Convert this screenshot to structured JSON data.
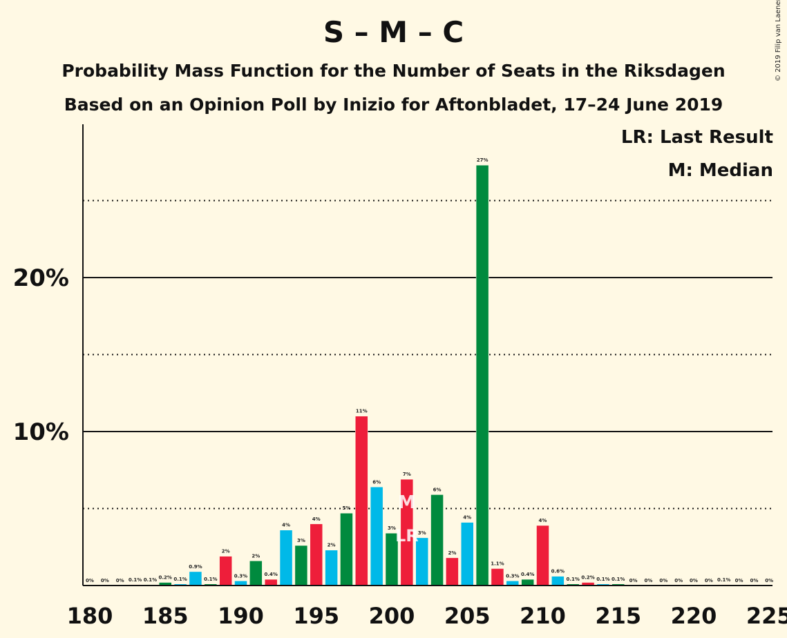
{
  "title": "S – M – C",
  "subtitle1": "Probability Mass Function for the Number of Seats in the Riksdagen",
  "subtitle2": "Based on an Opinion Poll by Inizio for Aftonbladet, 17–24 June 2019",
  "copyright": "© 2019 Filip van Laenen",
  "legend": {
    "last_result": "LR: Last Result",
    "median": "M: Median"
  },
  "colors": {
    "red": "#ee1e3a",
    "green": "#008a3e",
    "blue": "#00b9e8",
    "background": "#fff9e4"
  },
  "chart_data": {
    "type": "bar",
    "xlim": [
      180,
      225
    ],
    "ylim": [
      0,
      30
    ],
    "x_ticks": [
      180,
      185,
      190,
      195,
      200,
      205,
      210,
      215,
      220,
      225
    ],
    "y_ticks_solid": [
      10,
      20
    ],
    "y_tick_labels": [
      "10%",
      "20%"
    ],
    "y_ticks_dotted": [
      5,
      15,
      25
    ],
    "median_seat": 201,
    "median_label": "M",
    "last_result_seat": 201,
    "last_result_label": "LR",
    "bars": [
      {
        "seat": 180,
        "value": 0,
        "label": "0%",
        "color": "red"
      },
      {
        "seat": 181,
        "value": 0,
        "label": "0%",
        "color": "green"
      },
      {
        "seat": 182,
        "value": 0,
        "label": "0%",
        "color": "blue"
      },
      {
        "seat": 183,
        "value": 0.05,
        "label": "0.1%",
        "color": "red"
      },
      {
        "seat": 184,
        "value": 0.05,
        "label": "0.1%",
        "color": "green"
      },
      {
        "seat": 185,
        "value": 0.2,
        "label": "0.2%",
        "color": "green"
      },
      {
        "seat": 186,
        "value": 0.1,
        "label": "0.1%",
        "color": "blue"
      },
      {
        "seat": 187,
        "value": 0.9,
        "label": "0.9%",
        "color": "blue"
      },
      {
        "seat": 188,
        "value": 0.1,
        "label": "0.1%",
        "color": "green"
      },
      {
        "seat": 189,
        "value": 1.9,
        "label": "2%",
        "color": "red"
      },
      {
        "seat": 190,
        "value": 0.3,
        "label": "0.3%",
        "color": "blue"
      },
      {
        "seat": 191,
        "value": 1.6,
        "label": "2%",
        "color": "green"
      },
      {
        "seat": 192,
        "value": 0.4,
        "label": "0.4%",
        "color": "red"
      },
      {
        "seat": 193,
        "value": 3.6,
        "label": "4%",
        "color": "blue"
      },
      {
        "seat": 194,
        "value": 2.6,
        "label": "3%",
        "color": "green"
      },
      {
        "seat": 195,
        "value": 4.0,
        "label": "4%",
        "color": "red"
      },
      {
        "seat": 196,
        "value": 2.3,
        "label": "2%",
        "color": "blue"
      },
      {
        "seat": 197,
        "value": 4.7,
        "label": "5%",
        "color": "green"
      },
      {
        "seat": 198,
        "value": 11.0,
        "label": "11%",
        "color": "red"
      },
      {
        "seat": 199,
        "value": 6.4,
        "label": "6%",
        "color": "blue"
      },
      {
        "seat": 200,
        "value": 3.4,
        "label": "3%",
        "color": "green"
      },
      {
        "seat": 201,
        "value": 6.9,
        "label": "7%",
        "color": "red"
      },
      {
        "seat": 202,
        "value": 3.1,
        "label": "3%",
        "color": "blue"
      },
      {
        "seat": 203,
        "value": 5.9,
        "label": "6%",
        "color": "green"
      },
      {
        "seat": 204,
        "value": 1.8,
        "label": "2%",
        "color": "red"
      },
      {
        "seat": 205,
        "value": 4.1,
        "label": "4%",
        "color": "blue"
      },
      {
        "seat": 206,
        "value": 27.3,
        "label": "27%",
        "color": "green"
      },
      {
        "seat": 207,
        "value": 1.1,
        "label": "1.1%",
        "color": "red"
      },
      {
        "seat": 208,
        "value": 0.3,
        "label": "0.3%",
        "color": "blue"
      },
      {
        "seat": 209,
        "value": 0.4,
        "label": "0.4%",
        "color": "green"
      },
      {
        "seat": 210,
        "value": 3.9,
        "label": "4%",
        "color": "red"
      },
      {
        "seat": 211,
        "value": 0.6,
        "label": "0.6%",
        "color": "blue"
      },
      {
        "seat": 212,
        "value": 0.1,
        "label": "0.1%",
        "color": "green"
      },
      {
        "seat": 213,
        "value": 0.2,
        "label": "0.2%",
        "color": "red"
      },
      {
        "seat": 214,
        "value": 0.1,
        "label": "0.1%",
        "color": "blue"
      },
      {
        "seat": 215,
        "value": 0.1,
        "label": "0.1%",
        "color": "green"
      },
      {
        "seat": 216,
        "value": 0,
        "label": "0%",
        "color": "red"
      },
      {
        "seat": 217,
        "value": 0,
        "label": "0%",
        "color": "blue"
      },
      {
        "seat": 218,
        "value": 0,
        "label": "0%",
        "color": "green"
      },
      {
        "seat": 219,
        "value": 0,
        "label": "0%",
        "color": "red"
      },
      {
        "seat": 220,
        "value": 0,
        "label": "0%",
        "color": "blue"
      },
      {
        "seat": 221,
        "value": 0,
        "label": "0%",
        "color": "green"
      },
      {
        "seat": 222,
        "value": 0.05,
        "label": "0.1%",
        "color": "red"
      },
      {
        "seat": 223,
        "value": 0,
        "label": "0%",
        "color": "blue"
      },
      {
        "seat": 224,
        "value": 0,
        "label": "0%",
        "color": "green"
      },
      {
        "seat": 225,
        "value": 0,
        "label": "0%",
        "color": "red"
      }
    ]
  }
}
